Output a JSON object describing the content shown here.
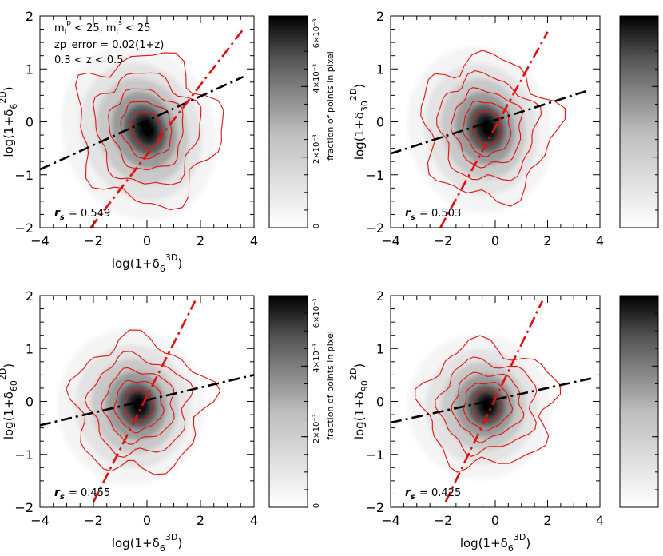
{
  "chart_data": [
    {
      "type": "heatmap",
      "xlabel": "log(1+δ₆³ᴰ)",
      "ylabel": "log(1+δ₆²ᴰ)",
      "xlim": [
        -4,
        4
      ],
      "ylim": [
        -2,
        2
      ],
      "xticks": [
        "−4",
        "−2",
        "0",
        "2",
        "4"
      ],
      "yticks": [
        "−2",
        "−1",
        "0",
        "1",
        "2"
      ],
      "annotations": [
        "m_i^p < 25, m_i^s < 25",
        "zp_error = 0.02(1+z)",
        "0.3 < z < 0.5"
      ],
      "rs_label": "r_s",
      "rs_value": "= 0.549",
      "peak": {
        "x": -0.3,
        "y": -0.2
      },
      "spread": {
        "major": 1.45,
        "minor": 0.32,
        "slope_angle_deg": 22
      },
      "black_fit": {
        "x": [
          -4,
          3.6
        ],
        "y": [
          -0.9,
          0.85
        ]
      },
      "red_fit": {
        "x": [
          -2.1,
          3.6
        ],
        "y": [
          -2,
          1.75
        ]
      }
    },
    {
      "type": "heatmap",
      "xlabel": "",
      "ylabel": "log(1+δ₃₀²ᴰ)",
      "xlim": [
        -4,
        4
      ],
      "ylim": [
        -2,
        2
      ],
      "xticks": [
        "−4",
        "−2",
        "0",
        "2",
        "4"
      ],
      "yticks": [
        "−2",
        "−1",
        "0",
        "1",
        "2"
      ],
      "annotations": [],
      "rs_label": "r_s",
      "rs_value": "= 0.503",
      "peak": {
        "x": -0.6,
        "y": -0.15
      },
      "spread": {
        "major": 1.4,
        "minor": 0.3,
        "slope_angle_deg": 14
      },
      "black_fit": {
        "x": [
          -4,
          3.6
        ],
        "y": [
          -0.6,
          0.6
        ]
      },
      "red_fit": {
        "x": [
          -2.1,
          2.0
        ],
        "y": [
          -2,
          1.7
        ]
      }
    },
    {
      "type": "heatmap",
      "xlabel": "log(1+δ₆³ᴰ)",
      "ylabel": "log(1+δ₆₀²ᴰ)",
      "xlim": [
        -4,
        4
      ],
      "ylim": [
        -2,
        2
      ],
      "xticks": [
        "−4",
        "−2",
        "0",
        "2",
        "4"
      ],
      "yticks": [
        "−2",
        "−1",
        "0",
        "1",
        "2"
      ],
      "annotations": [],
      "rs_label": "r_s",
      "rs_value": "= 0.455",
      "peak": {
        "x": -0.6,
        "y": -0.1
      },
      "spread": {
        "major": 1.4,
        "minor": 0.28,
        "slope_angle_deg": 10
      },
      "black_fit": {
        "x": [
          -4,
          4
        ],
        "y": [
          -0.45,
          0.5
        ]
      },
      "red_fit": {
        "x": [
          -2.0,
          1.8
        ],
        "y": [
          -1.9,
          1.9
        ]
      }
    },
    {
      "type": "heatmap",
      "xlabel": "log(1+δ₆³ᴰ)",
      "ylabel": "log(1+δ₉₀²ᴰ)",
      "xlim": [
        -4,
        4
      ],
      "ylim": [
        -2,
        2
      ],
      "xticks": [
        "−4",
        "−2",
        "0",
        "2",
        "4"
      ],
      "yticks": [
        "−2",
        "−1",
        "0",
        "1",
        "2"
      ],
      "annotations": [],
      "rs_label": "r_s",
      "rs_value": "= 0.425",
      "peak": {
        "x": -0.6,
        "y": -0.1
      },
      "spread": {
        "major": 1.4,
        "minor": 0.26,
        "slope_angle_deg": 9
      },
      "black_fit": {
        "x": [
          -4,
          3.8
        ],
        "y": [
          -0.4,
          0.45
        ]
      },
      "red_fit": {
        "x": [
          -1.9,
          1.8
        ],
        "y": [
          -1.9,
          1.9
        ]
      }
    }
  ],
  "colorbar": {
    "label": "fraction of points in pixel",
    "ticks": [
      "0",
      "2×10⁻³",
      "4×10⁻³",
      "6×10⁻³"
    ],
    "range": [
      0,
      0.006
    ]
  },
  "colors": {
    "contour": "#e01010",
    "red_fit": "#e01010",
    "black_fit": "#000000",
    "heat_max": "#000000",
    "heat_min": "#ffffff"
  }
}
